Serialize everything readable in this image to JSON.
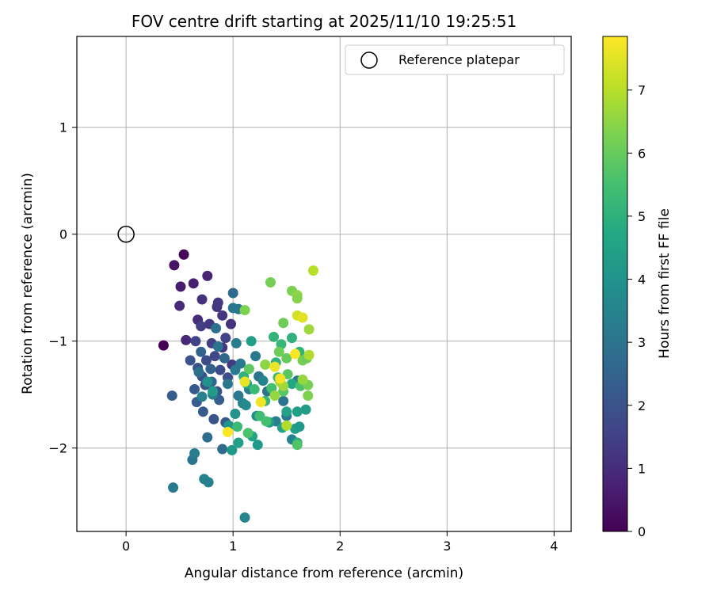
{
  "chart_data": {
    "type": "scatter",
    "title": "FOV centre drift starting at 2025/11/10 19:25:51",
    "xlabel": "Angular distance from reference (arcmin)",
    "ylabel": "Rotation from reference (arcmin)",
    "xlim": [
      -0.46,
      4.16
    ],
    "ylim": [
      -2.78,
      1.85
    ],
    "xticks": [
      0,
      1,
      2,
      3,
      4
    ],
    "yticks": [
      -2,
      -1,
      0,
      1
    ],
    "grid": true,
    "legend": {
      "position": "top-right",
      "label": "Reference platepar"
    },
    "reference": {
      "x": 0,
      "y": 0
    },
    "colorbar": {
      "label": "Hours from first FF file",
      "colormap": "viridis",
      "range": [
        0,
        7.85
      ],
      "ticks": [
        0,
        1,
        2,
        3,
        4,
        5,
        6,
        7
      ]
    },
    "points": [
      [
        0.35,
        -1.04,
        0.0
      ],
      [
        0.54,
        -0.19,
        0.1
      ],
      [
        0.45,
        -0.29,
        0.4
      ],
      [
        0.51,
        -0.49,
        0.6
      ],
      [
        0.63,
        -0.46,
        0.7
      ],
      [
        0.76,
        -0.39,
        0.8
      ],
      [
        0.5,
        -0.67,
        0.9
      ],
      [
        0.56,
        -0.99,
        0.9
      ],
      [
        0.67,
        -0.8,
        1.0
      ],
      [
        0.71,
        -0.61,
        1.1
      ],
      [
        0.85,
        -0.68,
        1.2
      ],
      [
        0.86,
        -0.64,
        1.3
      ],
      [
        0.9,
        -0.76,
        1.2
      ],
      [
        0.98,
        -0.84,
        1.1
      ],
      [
        0.78,
        -0.84,
        1.3
      ],
      [
        0.7,
        -0.86,
        1.4
      ],
      [
        0.9,
        -1.06,
        1.2
      ],
      [
        0.99,
        -1.22,
        1.3
      ],
      [
        0.65,
        -1.0,
        1.6
      ],
      [
        0.8,
        -1.02,
        1.5
      ],
      [
        0.93,
        -0.97,
        1.6
      ],
      [
        0.83,
        -1.14,
        1.7
      ],
      [
        0.75,
        -1.18,
        1.8
      ],
      [
        0.6,
        -1.18,
        2.0
      ],
      [
        0.67,
        -1.25,
        2.0
      ],
      [
        0.71,
        -1.33,
        1.9
      ],
      [
        0.88,
        -1.27,
        1.8
      ],
      [
        0.95,
        -1.34,
        1.9
      ],
      [
        0.64,
        -1.45,
        2.2
      ],
      [
        0.74,
        -1.41,
        2.1
      ],
      [
        0.85,
        -1.47,
        2.0
      ],
      [
        0.66,
        -1.57,
        2.3
      ],
      [
        0.72,
        -1.66,
        2.2
      ],
      [
        0.82,
        -1.73,
        2.1
      ],
      [
        0.93,
        -1.76,
        2.2
      ],
      [
        0.87,
        -1.55,
        2.3
      ],
      [
        0.43,
        -1.51,
        2.3
      ],
      [
        0.79,
        -1.26,
        2.4
      ],
      [
        0.7,
        -1.1,
        2.5
      ],
      [
        0.92,
        -1.16,
        2.6
      ],
      [
        0.8,
        -1.38,
        2.6
      ],
      [
        0.9,
        -2.01,
        2.7
      ],
      [
        0.76,
        -1.9,
        2.8
      ],
      [
        1.0,
        -0.55,
        2.7
      ],
      [
        1.05,
        -0.7,
        3.0
      ],
      [
        1.0,
        -0.69,
        3.1
      ],
      [
        0.84,
        -0.88,
        2.9
      ],
      [
        0.86,
        -1.05,
        3.0
      ],
      [
        0.68,
        -1.29,
        2.9
      ],
      [
        0.62,
        -2.11,
        3.0
      ],
      [
        0.64,
        -2.05,
        3.3
      ],
      [
        0.44,
        -2.37,
        3.2
      ],
      [
        0.73,
        -2.29,
        3.5
      ],
      [
        0.77,
        -2.32,
        3.4
      ],
      [
        1.11,
        -2.65,
        3.6
      ],
      [
        1.03,
        -1.02,
        3.3
      ],
      [
        1.07,
        -1.21,
        3.2
      ],
      [
        0.95,
        -1.4,
        3.1
      ],
      [
        1.02,
        -1.27,
        3.2
      ],
      [
        1.15,
        -1.45,
        3.3
      ],
      [
        1.05,
        -1.51,
        3.1
      ],
      [
        1.24,
        -1.33,
        3.0
      ],
      [
        1.21,
        -1.14,
        3.2
      ],
      [
        0.81,
        -1.5,
        3.3
      ],
      [
        0.71,
        -1.52,
        3.4
      ],
      [
        1.32,
        -1.47,
        3.0
      ],
      [
        1.28,
        -1.37,
        3.5
      ],
      [
        1.47,
        -1.56,
        3.0
      ],
      [
        1.5,
        -1.7,
        3.1
      ],
      [
        1.4,
        -1.75,
        3.3
      ],
      [
        1.55,
        -1.92,
        3.4
      ],
      [
        1.6,
        -1.37,
        3.2
      ],
      [
        1.09,
        -1.58,
        3.6
      ],
      [
        1.12,
        -1.6,
        3.7
      ],
      [
        1.22,
        -1.7,
        3.8
      ],
      [
        1.02,
        -1.68,
        4.0
      ],
      [
        0.99,
        -2.02,
        4.2
      ],
      [
        1.05,
        -1.95,
        4.4
      ],
      [
        0.96,
        -1.79,
        4.1
      ],
      [
        0.81,
        -1.47,
        4.3
      ],
      [
        0.76,
        -1.38,
        4.0
      ],
      [
        1.17,
        -1.0,
        4.4
      ],
      [
        1.13,
        -1.4,
        4.5
      ],
      [
        1.18,
        -1.89,
        4.6
      ],
      [
        1.23,
        -1.97,
        4.2
      ],
      [
        1.34,
        -1.76,
        4.3
      ],
      [
        1.46,
        -1.81,
        4.5
      ],
      [
        1.58,
        -1.82,
        4.4
      ],
      [
        1.62,
        -1.8,
        4.2
      ],
      [
        1.68,
        -1.64,
        4.3
      ],
      [
        1.6,
        -1.66,
        4.4
      ],
      [
        1.5,
        -1.66,
        4.5
      ],
      [
        1.6,
        -1.95,
        4.8
      ],
      [
        1.55,
        -1.4,
        4.7
      ],
      [
        1.4,
        -1.2,
        5.0
      ],
      [
        1.38,
        -0.96,
        5.1
      ],
      [
        1.45,
        -1.03,
        5.2
      ],
      [
        1.55,
        -0.97,
        5.0
      ],
      [
        1.62,
        -1.1,
        5.1
      ],
      [
        1.2,
        -1.45,
        5.3
      ],
      [
        1.3,
        -1.56,
        5.2
      ],
      [
        1.42,
        -1.34,
        5.3
      ],
      [
        1.1,
        -1.33,
        5.0
      ],
      [
        1.25,
        -1.7,
        5.4
      ],
      [
        1.31,
        -1.75,
        5.5
      ],
      [
        1.04,
        -1.8,
        5.3
      ],
      [
        1.14,
        -1.86,
        5.6
      ],
      [
        1.36,
        -1.44,
        5.5
      ],
      [
        1.63,
        -1.42,
        5.6
      ],
      [
        1.6,
        -1.97,
        5.7
      ],
      [
        1.47,
        -1.47,
        5.8
      ],
      [
        1.15,
        -1.26,
        5.9
      ],
      [
        1.51,
        -1.31,
        5.8
      ],
      [
        1.5,
        -1.16,
        6.0
      ],
      [
        1.43,
        -1.1,
        6.1
      ],
      [
        1.65,
        -1.18,
        6.2
      ],
      [
        1.69,
        -1.16,
        6.1
      ],
      [
        1.7,
        -1.41,
        6.2
      ],
      [
        1.7,
        -1.51,
        6.3
      ],
      [
        1.47,
        -0.83,
        6.1
      ],
      [
        1.35,
        -0.45,
        6.2
      ],
      [
        1.55,
        -0.53,
        6.3
      ],
      [
        1.6,
        -0.57,
        6.5
      ],
      [
        1.6,
        -0.6,
        6.4
      ],
      [
        1.11,
        -0.71,
        6.3
      ],
      [
        1.3,
        -1.22,
        6.5
      ],
      [
        1.39,
        -1.51,
        6.6
      ],
      [
        1.47,
        -1.42,
        6.7
      ],
      [
        1.44,
        -1.38,
        6.8
      ],
      [
        1.5,
        -1.79,
        6.9
      ],
      [
        1.65,
        -1.36,
        6.6
      ],
      [
        1.71,
        -0.89,
        6.7
      ],
      [
        1.71,
        -1.13,
        6.9
      ],
      [
        1.75,
        -0.34,
        7.0
      ],
      [
        1.6,
        -0.76,
        7.3
      ],
      [
        1.65,
        -0.78,
        7.5
      ],
      [
        1.39,
        -1.24,
        7.6
      ],
      [
        1.44,
        -1.35,
        7.7
      ],
      [
        1.58,
        -1.12,
        7.8
      ],
      [
        1.11,
        -1.38,
        7.6
      ],
      [
        1.26,
        -1.57,
        7.7
      ],
      [
        0.95,
        -1.85,
        7.9
      ]
    ]
  }
}
